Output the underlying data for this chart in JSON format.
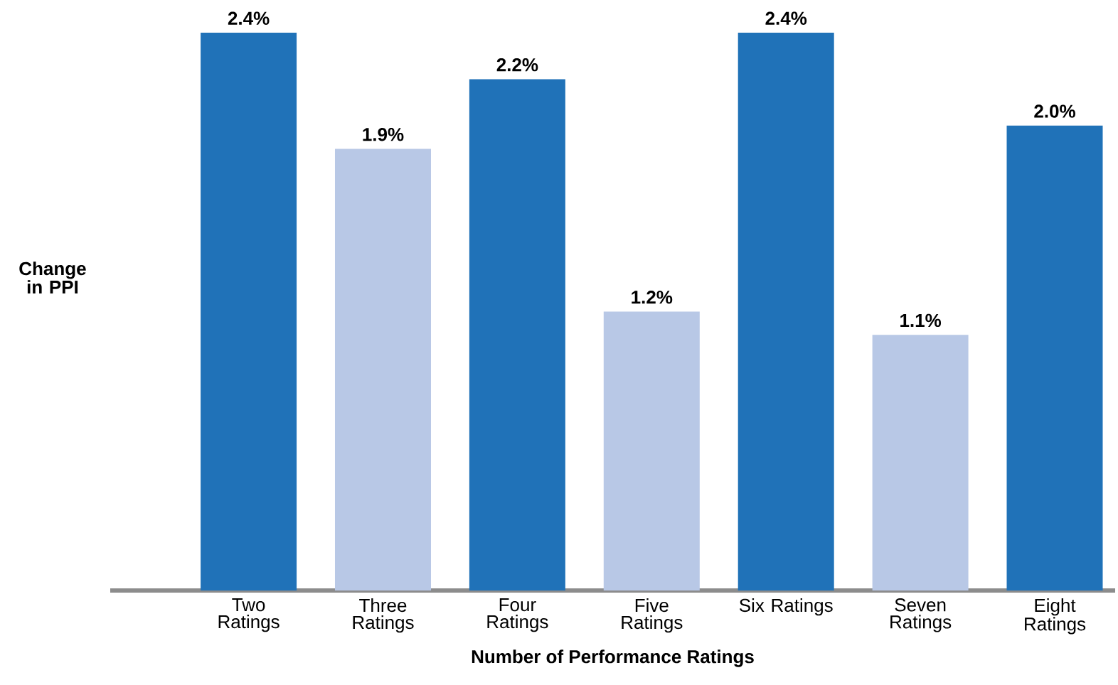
{
  "chart_data": {
    "type": "bar",
    "xlabel": "Number of Performance Ratings",
    "ylabel": "Change in PPI",
    "categories": [
      "Two Ratings",
      "Three Ratings",
      "Four Ratings",
      "Five Ratings",
      "Six Ratings",
      "Seven Ratings",
      "Eight Ratings"
    ],
    "values": [
      2.4,
      1.9,
      2.2,
      1.2,
      2.4,
      1.1,
      2.0
    ],
    "colors": [
      "#2072b8",
      "#b8c8e6",
      "#2072b8",
      "#b8c8e6",
      "#2072b8",
      "#b8c8e6",
      "#2072b8"
    ],
    "value_labels": [
      "2.4%",
      "1.9%",
      "2.2%",
      "1.2%",
      "2.4%",
      "1.1%",
      "2.0%"
    ]
  }
}
